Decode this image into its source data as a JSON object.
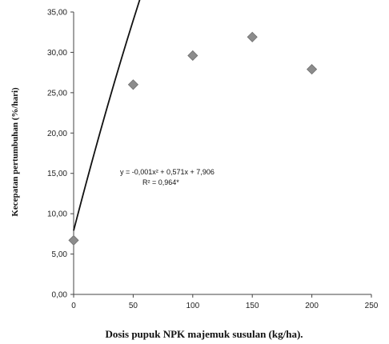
{
  "chart_data": {
    "type": "scatter",
    "title": "",
    "xlabel": "Dosis pupuk NPK majemuk susulan (kg/ha).",
    "ylabel": "Kecepatan pertumbuhan (%/hari)",
    "xlim": [
      0,
      250
    ],
    "ylim": [
      0,
      35
    ],
    "x_ticks": [
      "0",
      "50",
      "100",
      "150",
      "200",
      "250"
    ],
    "y_ticks": [
      "0,00",
      "5,00",
      "10,00",
      "15,00",
      "20,00",
      "25,00",
      "30,00",
      "35,00"
    ],
    "grid": false,
    "legend": "none",
    "series": [
      {
        "marker": "diamond",
        "color": "#8c8c8c",
        "x": [
          0,
          50,
          100,
          150,
          200
        ],
        "y": [
          6.7,
          26.0,
          29.6,
          31.9,
          27.9
        ]
      }
    ],
    "trendline": {
      "type": "polynomial",
      "coefficients": [
        -0.001,
        0.571,
        7.906
      ],
      "x_range": [
        0,
        200
      ],
      "color": "#111111"
    },
    "annotations": {
      "equation": "y = -0,001x² + 0,571x + 7,906",
      "r2": "R² = 0,964*"
    }
  }
}
